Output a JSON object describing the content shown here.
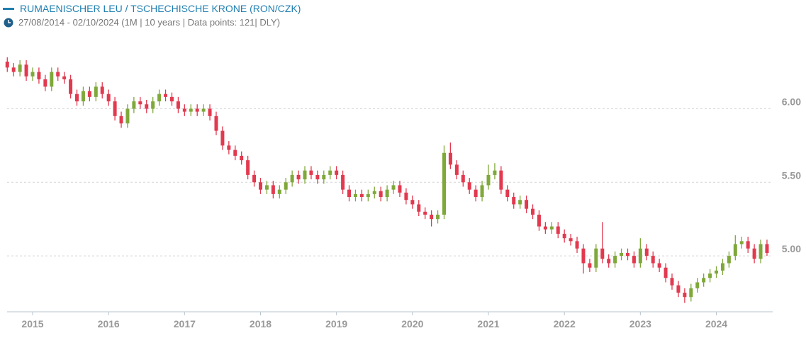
{
  "chart_data": {
    "type": "candlestick",
    "title": "RUMAENISCHER LEU / TSCHECHISCHE KRONE (RON/CZK)",
    "subtitle": "27/08/2014 - 02/10/2024 (1M | 10 years | Data points: 121| DLY)",
    "up_color": "#7fa83a",
    "down_color": "#e2394f",
    "grid": true,
    "ylim": [
      4.62,
      6.45
    ],
    "yticks": [
      {
        "value": 5,
        "label": "5.00"
      },
      {
        "value": 5.5,
        "label": "5.50"
      },
      {
        "value": 6,
        "label": "6.00"
      }
    ],
    "xlim": [
      -1.15,
      120.9
    ],
    "xticks": [
      {
        "value": 4,
        "label": "2015"
      },
      {
        "value": 16,
        "label": "2016"
      },
      {
        "value": 28,
        "label": "2017"
      },
      {
        "value": 40,
        "label": "2018"
      },
      {
        "value": 52,
        "label": "2019"
      },
      {
        "value": 64,
        "label": "2020"
      },
      {
        "value": 76,
        "label": "2021"
      },
      {
        "value": 88,
        "label": "2022"
      },
      {
        "value": 100,
        "label": "2023"
      },
      {
        "value": 112,
        "label": "2024"
      }
    ],
    "open": [
      6.32,
      6.28,
      6.25,
      6.3,
      6.22,
      6.25,
      6.2,
      6.15,
      6.25,
      6.22,
      6.2,
      6.1,
      6.05,
      6.12,
      6.08,
      6.15,
      6.1,
      6.05,
      5.95,
      5.9,
      6.0,
      6.05,
      6.03,
      6.0,
      6.05,
      6.1,
      6.08,
      6.05,
      6.0,
      5.98,
      6.0,
      5.98,
      6.0,
      5.95,
      5.85,
      5.75,
      5.72,
      5.68,
      5.65,
      5.55,
      5.5,
      5.45,
      5.48,
      5.42,
      5.45,
      5.5,
      5.55,
      5.52,
      5.58,
      5.55,
      5.52,
      5.55,
      5.58,
      5.55,
      5.45,
      5.4,
      5.42,
      5.4,
      5.42,
      5.44,
      5.4,
      5.45,
      5.48,
      5.43,
      5.38,
      5.35,
      5.3,
      5.28,
      5.25,
      5.28,
      5.7,
      5.62,
      5.55,
      5.5,
      5.45,
      5.4,
      5.48,
      5.55,
      5.58,
      5.45,
      5.4,
      5.35,
      5.38,
      5.32,
      5.28,
      5.2,
      5.18,
      5.2,
      5.15,
      5.12,
      5.1,
      5.05,
      4.95,
      4.92,
      5.05,
      4.98,
      4.95,
      5.0,
      5.02,
      5.0,
      4.95,
      5.05,
      5.0,
      4.95,
      4.92,
      4.85,
      4.8,
      4.75,
      4.72,
      4.78,
      4.82,
      4.85,
      4.88,
      4.9,
      4.95,
      5.0,
      5.08,
      5.1,
      5.05,
      4.98,
      5.08
    ],
    "high": [
      6.35,
      6.31,
      6.33,
      6.33,
      6.28,
      6.28,
      6.23,
      6.28,
      6.28,
      6.25,
      6.23,
      6.13,
      6.15,
      6.15,
      6.18,
      6.18,
      6.13,
      6.08,
      5.98,
      6.03,
      6.08,
      6.08,
      6.06,
      6.08,
      6.13,
      6.13,
      6.11,
      6.08,
      6.03,
      6.03,
      6.03,
      6.03,
      6.03,
      5.98,
      5.88,
      5.78,
      5.75,
      5.71,
      5.68,
      5.58,
      5.53,
      5.51,
      5.51,
      5.48,
      5.53,
      5.58,
      5.58,
      5.61,
      5.61,
      5.58,
      5.58,
      5.61,
      5.61,
      5.58,
      5.48,
      5.45,
      5.45,
      5.45,
      5.47,
      5.47,
      5.48,
      5.51,
      5.51,
      5.46,
      5.41,
      5.38,
      5.33,
      5.31,
      5.31,
      5.75,
      5.77,
      5.65,
      5.58,
      5.53,
      5.48,
      5.51,
      5.62,
      5.63,
      5.61,
      5.48,
      5.43,
      5.41,
      5.41,
      5.35,
      5.31,
      5.23,
      5.23,
      5.23,
      5.18,
      5.15,
      5.13,
      5.08,
      4.98,
      5.08,
      5.23,
      5.01,
      5.03,
      5.05,
      5.05,
      5.03,
      5.12,
      5.08,
      5.03,
      4.98,
      4.95,
      4.88,
      4.83,
      4.78,
      4.81,
      4.85,
      4.88,
      4.91,
      4.93,
      4.98,
      5.03,
      5.14,
      5.13,
      5.13,
      5.08,
      5.11,
      5.11
    ],
    "low": [
      6.25,
      6.22,
      6.22,
      6.19,
      6.19,
      6.17,
      6.12,
      6.12,
      6.19,
      6.17,
      6.07,
      6.02,
      6.02,
      6.05,
      6.05,
      6.07,
      6.02,
      5.92,
      5.87,
      5.87,
      5.97,
      6.0,
      5.97,
      5.97,
      6.02,
      6.05,
      6.02,
      5.97,
      5.95,
      5.95,
      5.95,
      5.95,
      5.92,
      5.82,
      5.72,
      5.69,
      5.65,
      5.62,
      5.52,
      5.47,
      5.42,
      5.42,
      5.39,
      5.39,
      5.42,
      5.47,
      5.49,
      5.49,
      5.52,
      5.49,
      5.49,
      5.52,
      5.52,
      5.42,
      5.37,
      5.37,
      5.37,
      5.37,
      5.39,
      5.37,
      5.37,
      5.42,
      5.4,
      5.35,
      5.32,
      5.27,
      5.25,
      5.2,
      5.22,
      5.25,
      5.59,
      5.52,
      5.47,
      5.42,
      5.37,
      5.37,
      5.45,
      5.52,
      5.42,
      5.37,
      5.32,
      5.32,
      5.29,
      5.25,
      5.17,
      5.15,
      5.15,
      5.12,
      5.09,
      5.07,
      5.02,
      4.88,
      4.89,
      4.89,
      4.95,
      4.92,
      4.92,
      4.97,
      4.97,
      4.92,
      4.92,
      4.97,
      4.92,
      4.89,
      4.82,
      4.77,
      4.72,
      4.68,
      4.69,
      4.75,
      4.79,
      4.82,
      4.85,
      4.87,
      4.92,
      4.97,
      5.05,
      5.02,
      4.95,
      4.95,
      5.0
    ],
    "close": [
      6.28,
      6.25,
      6.3,
      6.22,
      6.25,
      6.2,
      6.15,
      6.25,
      6.22,
      6.2,
      6.1,
      6.05,
      6.12,
      6.08,
      6.15,
      6.1,
      6.05,
      5.95,
      5.9,
      6.0,
      6.05,
      6.03,
      6.0,
      6.05,
      6.1,
      6.08,
      6.05,
      6.0,
      5.98,
      6.0,
      5.98,
      6.0,
      5.95,
      5.85,
      5.75,
      5.72,
      5.68,
      5.65,
      5.55,
      5.5,
      5.45,
      5.48,
      5.42,
      5.45,
      5.5,
      5.55,
      5.52,
      5.58,
      5.55,
      5.52,
      5.55,
      5.58,
      5.55,
      5.45,
      5.4,
      5.42,
      5.4,
      5.42,
      5.44,
      5.4,
      5.45,
      5.48,
      5.43,
      5.38,
      5.35,
      5.3,
      5.28,
      5.25,
      5.28,
      5.7,
      5.62,
      5.55,
      5.5,
      5.45,
      5.4,
      5.48,
      5.55,
      5.58,
      5.45,
      5.4,
      5.35,
      5.38,
      5.32,
      5.28,
      5.2,
      5.18,
      5.2,
      5.15,
      5.12,
      5.1,
      5.05,
      4.95,
      4.92,
      5.05,
      4.98,
      4.95,
      5.0,
      5.02,
      5.0,
      4.95,
      5.05,
      5.0,
      4.95,
      4.92,
      4.85,
      4.8,
      4.75,
      4.72,
      4.78,
      4.82,
      4.85,
      4.88,
      4.9,
      4.95,
      5.0,
      5.08,
      5.1,
      5.05,
      4.98,
      5.08,
      5.02
    ]
  }
}
